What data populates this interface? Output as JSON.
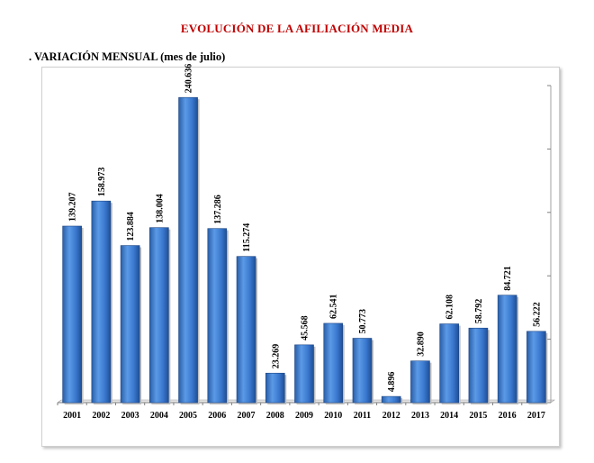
{
  "header": {
    "title": "EVOLUCIÓN DE LA AFILIACIÓN MEDIA",
    "subtitle": ". VARIACIÓN MENSUAL (mes de julio)"
  },
  "colors": {
    "title": "#c00000",
    "bar": "#3a78cf",
    "bar_dark": "#1f4f96"
  },
  "chart_data": {
    "type": "bar",
    "categories": [
      "2001",
      "2002",
      "2003",
      "2004",
      "2005",
      "2006",
      "2007",
      "2008",
      "2009",
      "2010",
      "2011",
      "2012",
      "2013",
      "2014",
      "2015",
      "2016",
      "2017"
    ],
    "values": [
      139207,
      158973,
      123884,
      138004,
      240636,
      137286,
      115274,
      23269,
      45568,
      62541,
      50773,
      4896,
      32890,
      62108,
      58792,
      84721,
      56222
    ],
    "data_labels": [
      "139.207",
      "158.973",
      "123.884",
      "138.004",
      "240.636",
      "137.286",
      "115.274",
      "23.269",
      "45.568",
      "62.541",
      "50.773",
      "4.896",
      "32.890",
      "62.108",
      "58.792",
      "84.721",
      "56.222"
    ],
    "ylim": [
      0,
      250000
    ],
    "y_ticks_visible": false,
    "grid": false,
    "data_label_orientation": "vertical"
  }
}
